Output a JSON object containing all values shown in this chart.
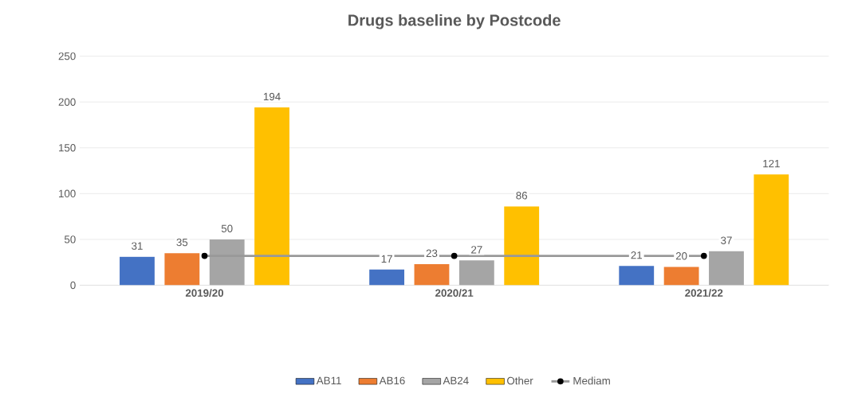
{
  "chart_data": {
    "type": "bar",
    "title": "Drugs baseline by Postcode",
    "categories": [
      "2019/20",
      "2020/21",
      "2021/22"
    ],
    "series": [
      {
        "name": "AB11",
        "color": "#4472c4",
        "values": [
          31,
          17,
          21
        ],
        "value_labels": [
          "31",
          "17",
          "21"
        ]
      },
      {
        "name": "AB16",
        "color": "#ed7d31",
        "values": [
          35,
          23,
          20
        ],
        "value_labels": [
          "35",
          "23",
          "20"
        ]
      },
      {
        "name": "AB24",
        "color": "#a5a5a5",
        "values": [
          50,
          27,
          37
        ],
        "value_labels": [
          "50",
          "27",
          "37"
        ]
      },
      {
        "name": "Other",
        "color": "#ffc000",
        "values": [
          194,
          86,
          121
        ],
        "value_labels": [
          "194",
          "86",
          "121"
        ]
      },
      {
        "name": "Mediam",
        "type": "line",
        "color": "#999999",
        "marker": "circle",
        "values": [
          32,
          32,
          32
        ]
      }
    ],
    "ylim": [
      0,
      250
    ],
    "yticks": [
      0,
      50,
      100,
      150,
      200,
      250
    ],
    "grid": "y",
    "legend": "bottom"
  }
}
